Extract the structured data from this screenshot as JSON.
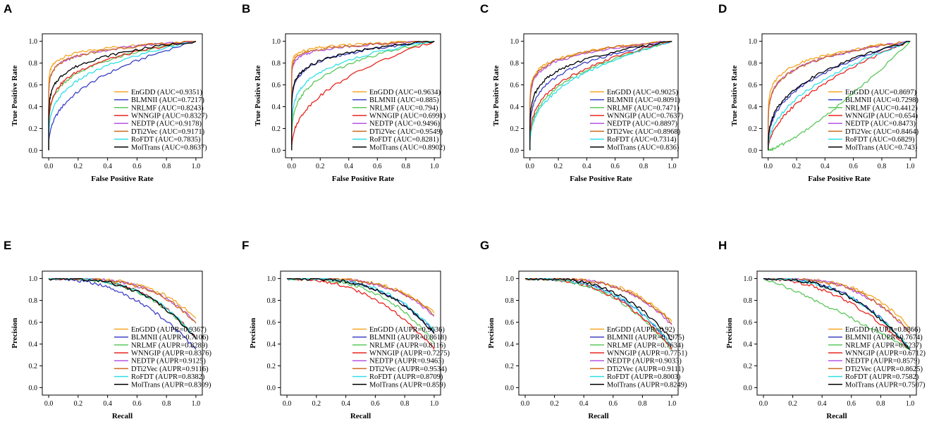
{
  "colors": {
    "EnGDD": "#f5a623",
    "BLMNII": "#3b3fc4",
    "NRLMF": "#5cc85c",
    "WNNGIP": "#e8251f",
    "NEDTP": "#b455e6",
    "DTi2Vec": "#cc6a1c",
    "RoFDT": "#2fe0e8",
    "MolTrans": "#000000"
  },
  "methods": [
    "EnGDD",
    "BLMNII",
    "NRLMF",
    "WNNGIP",
    "NEDTP",
    "DTi2Vec",
    "RoFDT",
    "MolTrans"
  ],
  "chart_data": [
    {
      "type": "line",
      "panel": "A",
      "xlabel": "False Positive Rate",
      "ylabel": "True Positive Rate",
      "xlim": [
        0,
        1
      ],
      "ylim": [
        0,
        1
      ],
      "xticks": [
        "0.0",
        "0.2",
        "0.4",
        "0.6",
        "0.8",
        "1.0"
      ],
      "yticks": [
        "0.0",
        "0.2",
        "0.4",
        "0.6",
        "0.8",
        "1.0"
      ],
      "legend_position": "bottom-right",
      "series": [
        {
          "name": "EnGDD",
          "label": "EnGDD (AUC=0.9351)",
          "value": 0.9351
        },
        {
          "name": "BLMNII",
          "label": "BLMNII (AUC=0.7217)",
          "value": 0.7217
        },
        {
          "name": "NRLMF",
          "label": "NRLMF (AUC=0.8243)",
          "value": 0.8243
        },
        {
          "name": "WNNGIP",
          "label": "WNNGIP (AUC=0.8327)",
          "value": 0.8327
        },
        {
          "name": "NEDTP",
          "label": "NEDTP (AUC=0.9178)",
          "value": 0.9178
        },
        {
          "name": "DTi2Vec",
          "label": "DTi2Vec (AUC=0.9171)",
          "value": 0.9171
        },
        {
          "name": "RoFDT",
          "label": "RoFDT (AUC=0.7835)",
          "value": 0.7835
        },
        {
          "name": "MolTrans",
          "label": "MolTrans (AUC=0.8637)",
          "value": 0.8637
        }
      ]
    },
    {
      "type": "line",
      "panel": "B",
      "xlabel": "False Positive Rate",
      "ylabel": "True Positive Rate",
      "xlim": [
        0,
        1
      ],
      "ylim": [
        0,
        1
      ],
      "xticks": [
        "0.0",
        "0.2",
        "0.4",
        "0.6",
        "0.8",
        "1.0"
      ],
      "yticks": [
        "0.0",
        "0.2",
        "0.4",
        "0.6",
        "0.8",
        "1.0"
      ],
      "legend_position": "bottom-right",
      "series": [
        {
          "name": "EnGDD",
          "label": "EnGDD (AUC=0.9634)",
          "value": 0.9634
        },
        {
          "name": "BLMNII",
          "label": "BLMNII (AUC=0.885)",
          "value": 0.885
        },
        {
          "name": "NRLMF",
          "label": "NRLMF (AUC=0.794)",
          "value": 0.794
        },
        {
          "name": "WNNGIP",
          "label": "WNNGIP (AUC=0.6991)",
          "value": 0.6991
        },
        {
          "name": "NEDTP",
          "label": "NEDTP (AUC=0.9496)",
          "value": 0.9496
        },
        {
          "name": "DTi2Vec",
          "label": "DTi2Vec (AUC=0.9549)",
          "value": 0.9549
        },
        {
          "name": "RoFDT",
          "label": "RoFDT (AUC=0.8281)",
          "value": 0.8281
        },
        {
          "name": "MolTrans",
          "label": "MolTrans (AUC=0.8902)",
          "value": 0.8902
        }
      ]
    },
    {
      "type": "line",
      "panel": "C",
      "xlabel": "False Positive Rate",
      "ylabel": "True Positive Rate",
      "xlim": [
        0,
        1
      ],
      "ylim": [
        0,
        1
      ],
      "xticks": [
        "0.0",
        "0.2",
        "0.4",
        "0.6",
        "0.8",
        "1.0"
      ],
      "yticks": [
        "0.0",
        "0.2",
        "0.4",
        "0.6",
        "0.8",
        "1.0"
      ],
      "legend_position": "bottom-right",
      "series": [
        {
          "name": "EnGDD",
          "label": "EnGDD (AUC=0.9025)",
          "value": 0.9025
        },
        {
          "name": "BLMNII",
          "label": "BLMNII (AUC=0.8091)",
          "value": 0.8091
        },
        {
          "name": "NRLMF",
          "label": "NRLMF (AUC=0.7471)",
          "value": 0.7471
        },
        {
          "name": "WNNGIP",
          "label": "WNNGIP (AUC=0.7637)",
          "value": 0.7637
        },
        {
          "name": "NEDTP",
          "label": "NEDTP (AUC=0.8897)",
          "value": 0.8897
        },
        {
          "name": "DTi2Vec",
          "label": "DTi2Vec (AUC=0.8968)",
          "value": 0.8968
        },
        {
          "name": "RoFDT",
          "label": "RoFDT (AUC=0.7314)",
          "value": 0.7314
        },
        {
          "name": "MolTrans",
          "label": "MolTrans (AUC=0.836)",
          "value": 0.836
        }
      ]
    },
    {
      "type": "line",
      "panel": "D",
      "xlabel": "False Positive Rate",
      "ylabel": "True Positive Rate",
      "xlim": [
        0,
        1
      ],
      "ylim": [
        0,
        1
      ],
      "xticks": [
        "0.0",
        "0.2",
        "0.4",
        "0.6",
        "0.8",
        "1.0"
      ],
      "yticks": [
        "0.0",
        "0.2",
        "0.4",
        "0.6",
        "0.8",
        "1.0"
      ],
      "legend_position": "bottom-right",
      "series": [
        {
          "name": "EnGDD",
          "label": "EnGDD (AUC=0.8697)",
          "value": 0.8697
        },
        {
          "name": "BLMNII",
          "label": "BLMNII (AUC=0.7298)",
          "value": 0.7298
        },
        {
          "name": "NRLMF",
          "label": "NRLMF (AUC=0.4412)",
          "value": 0.4412
        },
        {
          "name": "WNNGIP",
          "label": "WNNGIP (AUC=0.654)",
          "value": 0.654
        },
        {
          "name": "NEDTP",
          "label": "NEDTP (AUC=0.8473)",
          "value": 0.8473
        },
        {
          "name": "DTi2Vec",
          "label": "DTi2Vec (AUC=0.8464)",
          "value": 0.8464
        },
        {
          "name": "RoFDT",
          "label": "RoFDT (AUC=0.6829)",
          "value": 0.6829
        },
        {
          "name": "MolTrans",
          "label": "MolTrans (AUC=0.743)",
          "value": 0.743
        }
      ]
    },
    {
      "type": "line",
      "panel": "E",
      "xlabel": "Recall",
      "ylabel": "Precision",
      "xlim": [
        0,
        1
      ],
      "ylim": [
        0,
        1
      ],
      "xticks": [
        "0.0",
        "0.2",
        "0.4",
        "0.6",
        "0.8",
        "1.0"
      ],
      "yticks": [
        "0.0",
        "0.2",
        "0.4",
        "0.6",
        "0.8",
        "1.0"
      ],
      "legend_position": "bottom-right",
      "series": [
        {
          "name": "EnGDD",
          "label": "EnGDD (AUPR=0.9367)",
          "value": 0.9367
        },
        {
          "name": "BLMNII",
          "label": "BLMNII (AUPR=0.7106)",
          "value": 0.7106
        },
        {
          "name": "NRLMF",
          "label": "NRLMF (AUPR=0.8289)",
          "value": 0.8289
        },
        {
          "name": "WNNGIP",
          "label": "WNNGIP (AUPR=0.8376)",
          "value": 0.8376
        },
        {
          "name": "NEDTP",
          "label": "NEDTP (AUPR=0.9125)",
          "value": 0.9125
        },
        {
          "name": "DTi2Vec",
          "label": "DTi2Vec (AUPR=0.9116)",
          "value": 0.9116
        },
        {
          "name": "RoFDT",
          "label": "RoFDT (AUPR=0.8382)",
          "value": 0.8382
        },
        {
          "name": "MolTrans",
          "label": "MolTrans (AUPR=0.8309)",
          "value": 0.8309
        }
      ]
    },
    {
      "type": "line",
      "panel": "F",
      "xlabel": "Recall",
      "ylabel": "Precision",
      "xlim": [
        0,
        1
      ],
      "ylim": [
        0,
        1
      ],
      "xticks": [
        "0.0",
        "0.2",
        "0.4",
        "0.6",
        "0.8",
        "1.0"
      ],
      "yticks": [
        "0.0",
        "0.2",
        "0.4",
        "0.6",
        "0.8",
        "1.0"
      ],
      "legend_position": "bottom-right",
      "series": [
        {
          "name": "EnGDD",
          "label": "EnGDD (AUPR=0.9636)",
          "value": 0.9636
        },
        {
          "name": "BLMNII",
          "label": "BLMNII (AUPR=0.8618)",
          "value": 0.8618
        },
        {
          "name": "NRLMF",
          "label": "NRLMF (AUPR=0.8116)",
          "value": 0.8116
        },
        {
          "name": "WNNGIP",
          "label": "WNNGIP (AUPR=0.7275)",
          "value": 0.7275
        },
        {
          "name": "NEDTP",
          "label": "NEDTP (AUPR=0.9463)",
          "value": 0.9463
        },
        {
          "name": "DTi2Vec",
          "label": "DTi2Vec (AUPR=0.9534)",
          "value": 0.9534
        },
        {
          "name": "RoFDT",
          "label": "RoFDT (AUPR=0.8709)",
          "value": 0.8709
        },
        {
          "name": "MolTrans",
          "label": "MolTrans (AUPR=0.859)",
          "value": 0.859
        }
      ]
    },
    {
      "type": "line",
      "panel": "G",
      "xlabel": "Recall",
      "ylabel": "Precision",
      "xlim": [
        0,
        1
      ],
      "ylim": [
        0,
        1
      ],
      "xticks": [
        "0.0",
        "0.2",
        "0.4",
        "0.6",
        "0.8",
        "1.0"
      ],
      "yticks": [
        "0.0",
        "0.2",
        "0.4",
        "0.6",
        "0.8",
        "1.0"
      ],
      "legend_position": "bottom-right",
      "series": [
        {
          "name": "EnGDD",
          "label": "EnGDD (AUPR=0.92)",
          "value": 0.92
        },
        {
          "name": "BLMNII",
          "label": "BLMNII (AUPR=0.7975)",
          "value": 0.7975
        },
        {
          "name": "NRLMF",
          "label": "NRLMF (AUPR=0.7634)",
          "value": 0.7634
        },
        {
          "name": "WNNGIP",
          "label": "WNNGIP (AUPR=0.7751)",
          "value": 0.7751
        },
        {
          "name": "NEDTP",
          "label": "NEDTP (AUPR=0.9033)",
          "value": 0.9033
        },
        {
          "name": "DTi2Vec",
          "label": "DTi2Vec (AUPR=0.9111)",
          "value": 0.9111
        },
        {
          "name": "RoFDT",
          "label": "RoFDT (AUPR=0.8003)",
          "value": 0.8003
        },
        {
          "name": "MolTrans",
          "label": "MolTrans (AUPR=0.8249)",
          "value": 0.8249
        }
      ]
    },
    {
      "type": "line",
      "panel": "H",
      "xlabel": "Recall",
      "ylabel": "Precision",
      "xlim": [
        0,
        1
      ],
      "ylim": [
        0,
        1
      ],
      "xticks": [
        "0.0",
        "0.2",
        "0.4",
        "0.6",
        "0.8",
        "1.0"
      ],
      "yticks": [
        "0.0",
        "0.2",
        "0.4",
        "0.6",
        "0.8",
        "1.0"
      ],
      "legend_position": "bottom-right",
      "series": [
        {
          "name": "EnGDD",
          "label": "EnGDD (AUPR=0.8866)",
          "value": 0.8866
        },
        {
          "name": "BLMNII",
          "label": "BLMNII (AUPR=0.7674)",
          "value": 0.7674
        },
        {
          "name": "NRLMF",
          "label": "NRLMF (AUPR=0.5237)",
          "value": 0.5237
        },
        {
          "name": "WNNGIP",
          "label": "WNNGIP (AUPR=0.6712)",
          "value": 0.6712
        },
        {
          "name": "NEDTP",
          "label": "NEDTP (AUPR=0.8579)",
          "value": 0.8579
        },
        {
          "name": "DTi2Vec",
          "label": "DTi2Vec (AUPR=0.8625)",
          "value": 0.8625
        },
        {
          "name": "RoFDT",
          "label": "RoFDT (AUPR=0.7582)",
          "value": 0.7582
        },
        {
          "name": "MolTrans",
          "label": "MolTrans (AUPR=0.7507)",
          "value": 0.7507
        }
      ]
    }
  ]
}
